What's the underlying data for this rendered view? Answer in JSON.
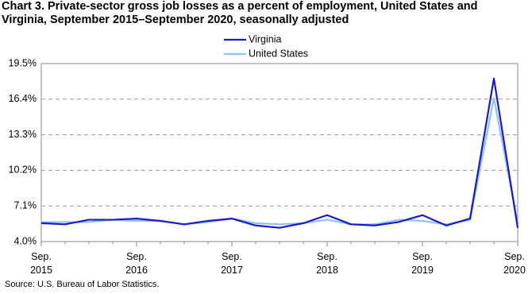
{
  "chart_data": {
    "type": "line",
    "title": "Chart 3. Private-sector gross job losses as a percent of employment, United States and Virginia, September 2015–September 2020, seasonally adjusted",
    "source": "Source: U.S. Bureau of Labor Statistics.",
    "categories": [
      "Sep. 2015",
      null,
      null,
      null,
      "Sep. 2016",
      null,
      null,
      null,
      "Sep. 2017",
      null,
      null,
      null,
      "Sep. 2018",
      null,
      null,
      null,
      "Sep. 2019",
      null,
      null,
      null,
      "Sep. 2020"
    ],
    "series": [
      {
        "name": "Virginia",
        "color": "#1a1acc",
        "values": [
          5.6,
          5.5,
          5.9,
          5.9,
          6.0,
          5.8,
          5.5,
          5.8,
          6.0,
          5.4,
          5.2,
          5.6,
          6.3,
          5.5,
          5.4,
          5.7,
          6.3,
          5.4,
          6.0,
          18.2,
          5.2
        ]
      },
      {
        "name": "United States",
        "color": "#8fc4f0",
        "values": [
          5.7,
          5.7,
          5.7,
          5.9,
          5.8,
          5.8,
          5.5,
          5.7,
          6.0,
          5.6,
          5.5,
          5.6,
          5.9,
          5.5,
          5.5,
          5.9,
          5.8,
          5.5,
          5.9,
          16.5,
          5.6
        ]
      }
    ],
    "ylim": [
      4.0,
      19.5
    ],
    "yticks": [
      {
        "value": 4.0,
        "label": "4.0%"
      },
      {
        "value": 7.1,
        "label": "7.1%"
      },
      {
        "value": 10.2,
        "label": "10.2%"
      },
      {
        "value": 13.3,
        "label": "13.3%"
      },
      {
        "value": 16.4,
        "label": "16.4%"
      },
      {
        "value": 19.5,
        "label": "19.5%"
      }
    ],
    "grid": true,
    "legend": "top"
  }
}
